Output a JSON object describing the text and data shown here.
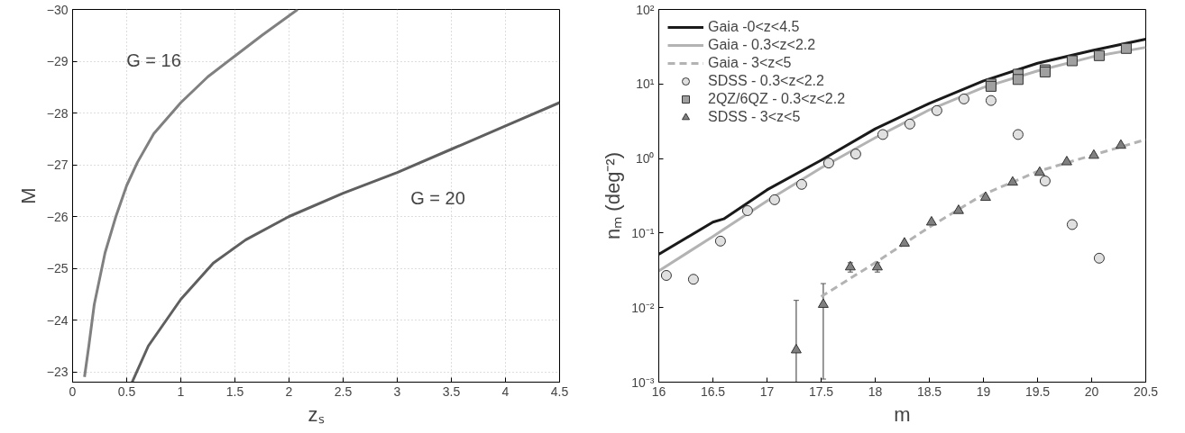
{
  "chart_data": [
    {
      "type": "line",
      "xlabel": "zₛ",
      "ylabel": "M",
      "xlim": [
        0,
        4.5
      ],
      "ylim": [
        -22.8,
        -30
      ],
      "xticks": [
        0,
        0.5,
        1,
        1.5,
        2,
        2.5,
        3,
        3.5,
        4,
        4.5
      ],
      "yticks": [
        -23,
        -24,
        -25,
        -26,
        -27,
        -28,
        -29,
        -30
      ],
      "grid": true,
      "legend": false,
      "series": [
        {
          "color": "#808080",
          "x": [
            0.11,
            0.15,
            0.2,
            0.3,
            0.4,
            0.5,
            0.6,
            0.75,
            1,
            1.25,
            1.5,
            1.75,
            2.08
          ],
          "values": [
            -22.9,
            -23.5,
            -24.3,
            -25.3,
            -26,
            -26.6,
            -27.05,
            -27.6,
            -28.2,
            -28.7,
            -29.1,
            -29.5,
            -30
          ]
        },
        {
          "color": "#5f5f5f",
          "x": [
            0.55,
            0.7,
            1,
            1.3,
            1.6,
            2,
            2.5,
            3,
            3.5,
            4,
            4.5
          ],
          "values": [
            -22.8,
            -23.5,
            -24.4,
            -25.1,
            -25.55,
            -26,
            -26.45,
            -26.85,
            -27.3,
            -27.75,
            -28.2
          ]
        }
      ],
      "annotations": [
        "G = 16",
        "G = 20"
      ]
    },
    {
      "type": "line",
      "xlabel": "m",
      "ylabel": "nₘ (deg⁻²)",
      "xlim": [
        16,
        20.5
      ],
      "ylim": [
        0.001,
        100
      ],
      "log": "y",
      "xticks": [
        16,
        16.5,
        17,
        17.5,
        18,
        18.5,
        19,
        19.5,
        20,
        20.5
      ],
      "yticks": [
        {
          "value": 0.001,
          "label": "10⁻³"
        },
        {
          "value": 0.01,
          "label": "10⁻²"
        },
        {
          "value": 0.1,
          "label": "10⁻¹"
        },
        {
          "value": 1,
          "label": "10⁰"
        },
        {
          "value": 10,
          "label": "10¹"
        },
        {
          "value": 100,
          "label": "10²"
        }
      ],
      "grid": false,
      "legend": "top left",
      "series": [
        {
          "name": "Gaia -0<z<4.5",
          "type": "line",
          "color": "#1a1a1a",
          "line_style": "solid",
          "x": [
            16,
            16.5,
            16.6,
            17,
            17.5,
            18,
            18.5,
            19,
            19.5,
            20,
            20.5
          ],
          "values": [
            0.052,
            0.14,
            0.155,
            0.38,
            0.95,
            2.5,
            5.5,
            11,
            19,
            28,
            40
          ]
        },
        {
          "name": "Gaia - 0.3<z<2.2",
          "type": "line",
          "color": "#b3b3b3",
          "line_style": "solid",
          "x": [
            16,
            16.5,
            17,
            17.5,
            18,
            18.5,
            19,
            19.5,
            20,
            20.5
          ],
          "values": [
            0.031,
            0.09,
            0.27,
            0.75,
            1.9,
            4.5,
            9,
            15,
            23,
            31
          ]
        },
        {
          "name": "Gaia - 3<z<5",
          "type": "line",
          "color": "#b3b3b3",
          "line_style": "dashed",
          "x": [
            17.5,
            18,
            18.5,
            19,
            19.5,
            20,
            20.5
          ],
          "values": [
            0.014,
            0.04,
            0.12,
            0.33,
            0.67,
            1.1,
            1.8
          ]
        },
        {
          "name": "SDSS - 0.3<z<2.2",
          "type": "scatter",
          "marker": "circle",
          "color": "#e0e0e0",
          "x": [
            16.07,
            16.32,
            16.57,
            16.82,
            17.07,
            17.32,
            17.57,
            17.82,
            18.07,
            18.32,
            18.57,
            18.82,
            19.07,
            19.32,
            19.57,
            19.82,
            20.07
          ],
          "values": [
            0.027,
            0.024,
            0.078,
            0.2,
            0.28,
            0.45,
            0.87,
            1.15,
            2.1,
            2.9,
            4.4,
            6.3,
            6.0,
            2.1,
            0.5,
            0.13,
            0.046
          ]
        },
        {
          "name": "2QZ/6QZ - 0.3<z<2.2",
          "type": "scatter",
          "marker": "square",
          "color": "#a0a0a0",
          "x": [
            19.07,
            19.07,
            19.32,
            19.32,
            19.57,
            19.57,
            19.82,
            20.07,
            20.32
          ],
          "values": [
            10,
            9.3,
            13.5,
            11.5,
            15.5,
            14.5,
            20.5,
            24,
            30
          ]
        },
        {
          "name": "SDSS - 3<z<5",
          "type": "scatter",
          "marker": "triangle",
          "color": "#808080",
          "x": [
            17.27,
            17.52,
            17.77,
            18.02,
            18.27,
            18.52,
            18.77,
            19.02,
            19.27,
            19.52,
            19.77,
            20.02,
            20.27
          ],
          "values": [
            0.0027,
            0.011,
            0.035,
            0.035,
            0.073,
            0.14,
            0.2,
            0.3,
            0.48,
            0.65,
            0.9,
            1.1,
            1.5
          ],
          "errors": [
            [
              0.001,
              0.0125
            ],
            [
              0.0011,
              0.021
            ],
            [
              0.03,
              0.04
            ],
            [
              0.03,
              0.04
            ],
            null,
            null,
            null,
            null,
            null,
            null,
            null,
            null,
            null
          ]
        }
      ]
    }
  ]
}
